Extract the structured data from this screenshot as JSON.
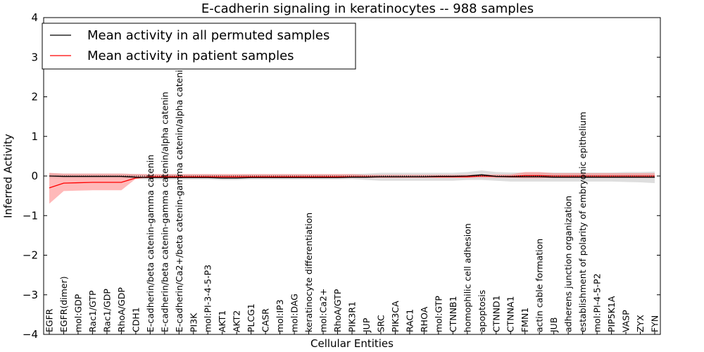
{
  "chart_data": {
    "type": "line",
    "title": "E-cadherin signaling in keratinocytes -- 988 samples",
    "xlabel": "Cellular Entities",
    "ylabel": "Inferred Activity",
    "ylim": [
      -4,
      4
    ],
    "yticks": [
      4,
      3,
      2,
      1,
      0,
      -1,
      -2,
      -3,
      -4
    ],
    "ytick_labels": [
      "4",
      "3",
      "2",
      "1",
      "0",
      "−1",
      "−2",
      "−3",
      "−4"
    ],
    "grid": false,
    "legend_position": "top-left",
    "categories": [
      "EGFR",
      "EGFR(dimer)",
      "mol:GDP",
      "Rac1/GTP",
      "Rac1/GDP",
      "RhoA/GDP",
      "CDH1",
      "E-cadherin/beta catenin-gamma catenin",
      "E-cadherin/beta catenin-gamma catenin/alpha catenin",
      "E-cadherin/Ca2+/beta catenin-gamma catenin/alpha catenin",
      "PI3K",
      "mol:PI-3-4-5-P3",
      "AKT1",
      "AKT2",
      "PLCG1",
      "CASR",
      "mol:IP3",
      "mol:DAG",
      "keratinocyte differentiation",
      "mol:Ca2+",
      "RhoA/GTP",
      "PIK3R1",
      "JUP",
      "SRC",
      "PIK3CA",
      "RAC1",
      "RHOA",
      "mol:GTP",
      "CTNNB1",
      "homophilic cell adhesion",
      "apoptosis",
      "CTNND1",
      "CTNNA1",
      "FMN1",
      "actin cable formation",
      "JUB",
      "adherens junction organization",
      "establishment of polarity of embryonic epithelium",
      "mol:PI-4-5-P2",
      "PIP5K1A",
      "VASP",
      "ZYX",
      "FYN"
    ],
    "series": [
      {
        "name": "Mean activity in all permuted samples",
        "color": "#000000",
        "values": [
          0.0,
          -0.01,
          -0.01,
          -0.01,
          -0.01,
          -0.01,
          -0.03,
          -0.04,
          -0.04,
          -0.04,
          -0.04,
          -0.04,
          -0.05,
          -0.05,
          -0.04,
          -0.04,
          -0.04,
          -0.04,
          -0.04,
          -0.04,
          -0.04,
          -0.03,
          -0.03,
          -0.02,
          -0.02,
          -0.02,
          -0.02,
          -0.01,
          -0.01,
          0.0,
          0.03,
          -0.01,
          -0.02,
          -0.02,
          -0.02,
          -0.03,
          -0.03,
          -0.03,
          -0.03,
          -0.03,
          -0.03,
          -0.03,
          -0.03
        ],
        "band_lower": [
          -0.05,
          -0.05,
          -0.05,
          -0.05,
          -0.05,
          -0.05,
          -0.08,
          -0.09,
          -0.09,
          -0.09,
          -0.09,
          -0.09,
          -0.1,
          -0.1,
          -0.09,
          -0.09,
          -0.09,
          -0.09,
          -0.09,
          -0.09,
          -0.09,
          -0.08,
          -0.1,
          -0.12,
          -0.12,
          -0.12,
          -0.12,
          -0.12,
          -0.12,
          -0.1,
          -0.1,
          -0.12,
          -0.14,
          -0.14,
          -0.14,
          -0.14,
          -0.14,
          -0.14,
          -0.14,
          -0.14,
          -0.15,
          -0.16,
          -0.18
        ],
        "band_upper": [
          0.07,
          0.06,
          0.06,
          0.06,
          0.06,
          0.06,
          0.05,
          0.04,
          0.04,
          0.04,
          0.04,
          0.04,
          0.03,
          0.03,
          0.04,
          0.04,
          0.04,
          0.04,
          0.04,
          0.04,
          0.04,
          0.05,
          0.06,
          0.08,
          0.08,
          0.08,
          0.08,
          0.08,
          0.08,
          0.1,
          0.14,
          0.1,
          0.09,
          0.09,
          0.09,
          0.09,
          0.09,
          0.09,
          0.09,
          0.09,
          0.1,
          0.1,
          0.11
        ]
      },
      {
        "name": "Mean activity in patient samples",
        "color": "#ff0000",
        "values": [
          -0.3,
          -0.18,
          -0.17,
          -0.16,
          -0.16,
          -0.16,
          -0.05,
          -0.02,
          -0.02,
          -0.02,
          -0.02,
          -0.02,
          -0.02,
          -0.02,
          -0.02,
          -0.02,
          -0.02,
          -0.02,
          -0.02,
          -0.02,
          -0.02,
          -0.02,
          -0.02,
          -0.02,
          -0.02,
          -0.02,
          -0.02,
          -0.02,
          -0.02,
          -0.02,
          0.0,
          -0.01,
          -0.01,
          0.01,
          0.01,
          0.0,
          0.0,
          0.0,
          0.0,
          0.0,
          0.0,
          0.0,
          0.0
        ],
        "band_lower": [
          -0.7,
          -0.38,
          -0.37,
          -0.36,
          -0.36,
          -0.36,
          -0.07,
          -0.05,
          -0.05,
          -0.05,
          -0.05,
          -0.05,
          -0.05,
          -0.05,
          -0.05,
          -0.05,
          -0.05,
          -0.05,
          -0.05,
          -0.05,
          -0.05,
          -0.05,
          -0.05,
          -0.05,
          -0.05,
          -0.05,
          -0.05,
          -0.05,
          -0.05,
          -0.05,
          -0.04,
          -0.05,
          -0.05,
          -0.06,
          -0.06,
          -0.05,
          -0.05,
          -0.05,
          -0.05,
          -0.05,
          -0.05,
          -0.05,
          -0.05
        ],
        "band_upper": [
          0.08,
          0.06,
          0.06,
          0.06,
          0.06,
          0.06,
          0.05,
          0.05,
          0.05,
          0.05,
          0.05,
          0.05,
          0.05,
          0.05,
          0.05,
          0.05,
          0.05,
          0.05,
          0.05,
          0.05,
          0.05,
          0.05,
          0.03,
          0.03,
          0.03,
          0.03,
          0.03,
          0.03,
          0.03,
          0.03,
          0.04,
          0.04,
          0.04,
          0.1,
          0.1,
          0.07,
          0.07,
          0.07,
          0.07,
          0.07,
          0.07,
          0.07,
          0.07
        ]
      }
    ],
    "colors": {
      "permuted_band": "#c8c8c8",
      "patient_band": "#ff7f7f"
    }
  }
}
